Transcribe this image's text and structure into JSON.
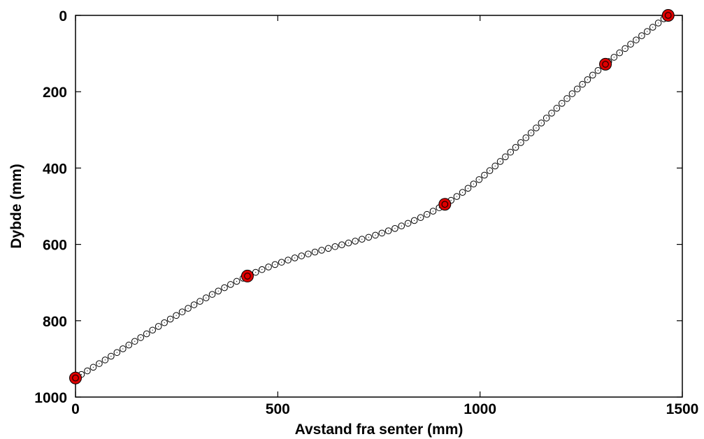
{
  "chart_data": {
    "type": "scatter",
    "title": "",
    "xlabel": "Avstand fra senter (mm)",
    "ylabel": "Dybde (mm)",
    "xlim": [
      0,
      1500
    ],
    "ylim": [
      0,
      1000
    ],
    "y_reversed": true,
    "grid": false,
    "x_ticks": [
      "0",
      "500",
      "1000",
      "1500"
    ],
    "y_ticks": [
      "0",
      "200",
      "400",
      "600",
      "800",
      "1000"
    ],
    "control_points": {
      "x": [
        0,
        425,
        913,
        1310,
        1465
      ],
      "y": [
        950,
        683,
        495,
        128,
        0
      ],
      "marker_color": "#dd0000"
    },
    "curve_points": {
      "marker_color": "#ffffff",
      "edge_color": "#000000"
    }
  }
}
